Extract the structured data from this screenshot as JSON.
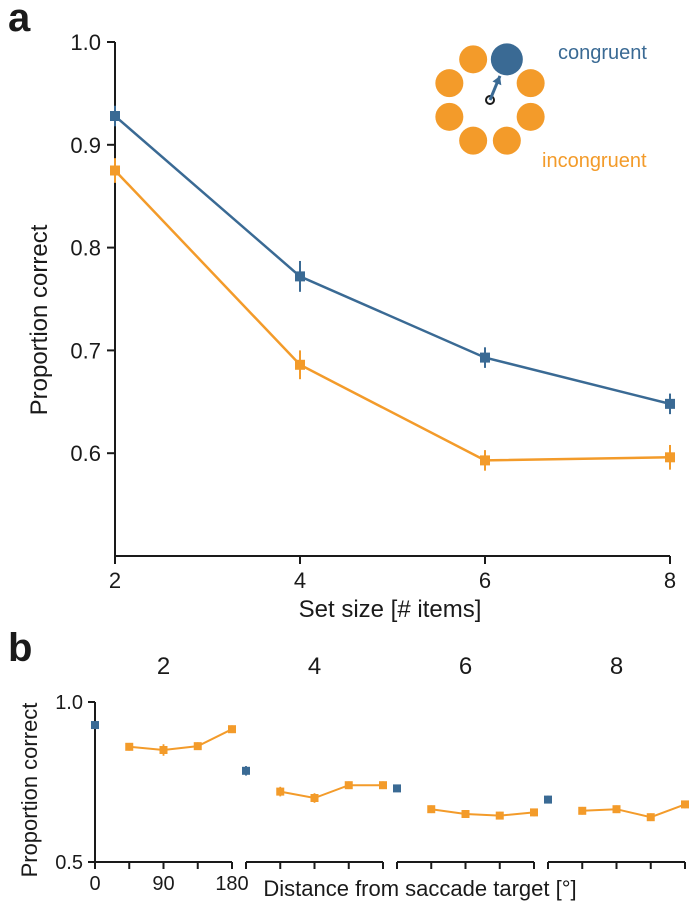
{
  "panelA": {
    "label": "a",
    "label_fontsize": 40,
    "label_fontweight": 700,
    "type": "line",
    "xlabel": "Set size [# items]",
    "ylabel": "Proportion correct",
    "label_fontsize_axis": 24,
    "tick_fontsize": 22,
    "xlim": [
      2,
      8
    ],
    "ylim": [
      0.5,
      1.0
    ],
    "xticks": [
      2,
      4,
      6,
      8
    ],
    "yticks": [
      0.6,
      0.7,
      0.8,
      0.9,
      1.0
    ],
    "series": {
      "congruent": {
        "label": "congruent",
        "color": "#3a6a94",
        "marker": "square",
        "marker_size": 10,
        "line_width": 2.5,
        "x": [
          2,
          4,
          6,
          8
        ],
        "y": [
          0.928,
          0.772,
          0.693,
          0.648
        ],
        "err": [
          0.01,
          0.015,
          0.01,
          0.01
        ]
      },
      "incongruent": {
        "label": "incongruent",
        "color": "#f39b2a",
        "marker": "square",
        "marker_size": 10,
        "line_width": 2.5,
        "x": [
          2,
          4,
          6,
          8
        ],
        "y": [
          0.875,
          0.686,
          0.593,
          0.596
        ],
        "err": [
          0.012,
          0.014,
          0.01,
          0.012
        ]
      }
    },
    "inset": {
      "congruent_color": "#3a6a94",
      "incongruent_color": "#f39b2a",
      "congruent_label": "congruent",
      "incongruent_label": "incongruent",
      "text_fontsize": 20,
      "n_incongruent": 7,
      "incongruent_radius": 14,
      "congruent_radius": 16,
      "ring_radius": 44,
      "center_dot_stroke": "#1a1a1a",
      "arrow_color": "#3a6a94"
    }
  },
  "panelB": {
    "label": "b",
    "label_fontsize": 40,
    "type": "line-small-multiples",
    "ylabel": "Proportion correct",
    "xlabel": "Distance from saccade target [°]",
    "label_fontsize_axis": 22,
    "tick_fontsize": 20,
    "ylim": [
      0.5,
      1.0
    ],
    "yticks": [
      0.5,
      1.0
    ],
    "xlim": [
      0,
      180
    ],
    "xticks": [
      0,
      45,
      90,
      180
    ],
    "xticks_shown": [
      0,
      90,
      180
    ],
    "xticks_inner": [
      45,
      135
    ],
    "facet_titles": [
      "2",
      "4",
      "6",
      "8"
    ],
    "facet_title_fontsize": 24,
    "congruent_color": "#3a6a94",
    "incongruent_color": "#f39b2a",
    "marker_size": 8,
    "line_width": 2,
    "facets": [
      {
        "title": "2",
        "congruent": {
          "x": [
            0
          ],
          "y": [
            0.928
          ],
          "err": [
            0.01
          ]
        },
        "incongruent": {
          "x": [
            45,
            90,
            135,
            180
          ],
          "y": [
            0.86,
            0.85,
            0.862,
            0.915
          ],
          "err": [
            0.012,
            0.018,
            0.012,
            0.012
          ]
        }
      },
      {
        "title": "4",
        "congruent": {
          "x": [
            0
          ],
          "y": [
            0.785
          ],
          "err": [
            0.015
          ]
        },
        "incongruent": {
          "x": [
            45,
            90,
            135,
            180
          ],
          "y": [
            0.72,
            0.7,
            0.74,
            0.74
          ],
          "err": [
            0.015,
            0.015,
            0.012,
            0.012
          ]
        }
      },
      {
        "title": "6",
        "congruent": {
          "x": [
            0
          ],
          "y": [
            0.73
          ],
          "err": [
            0.01
          ]
        },
        "incongruent": {
          "x": [
            45,
            90,
            135,
            180
          ],
          "y": [
            0.665,
            0.65,
            0.645,
            0.655
          ],
          "err": [
            0.012,
            0.012,
            0.012,
            0.012
          ]
        }
      },
      {
        "title": "8",
        "congruent": {
          "x": [
            0
          ],
          "y": [
            0.695
          ],
          "err": [
            0.012
          ]
        },
        "incongruent": {
          "x": [
            45,
            90,
            135,
            180
          ],
          "y": [
            0.66,
            0.665,
            0.64,
            0.68
          ],
          "err": [
            0.012,
            0.012,
            0.012,
            0.012
          ]
        }
      }
    ]
  },
  "colors": {
    "axis": "#1a1a1a",
    "text": "#1a1a1a",
    "background": "#ffffff"
  }
}
